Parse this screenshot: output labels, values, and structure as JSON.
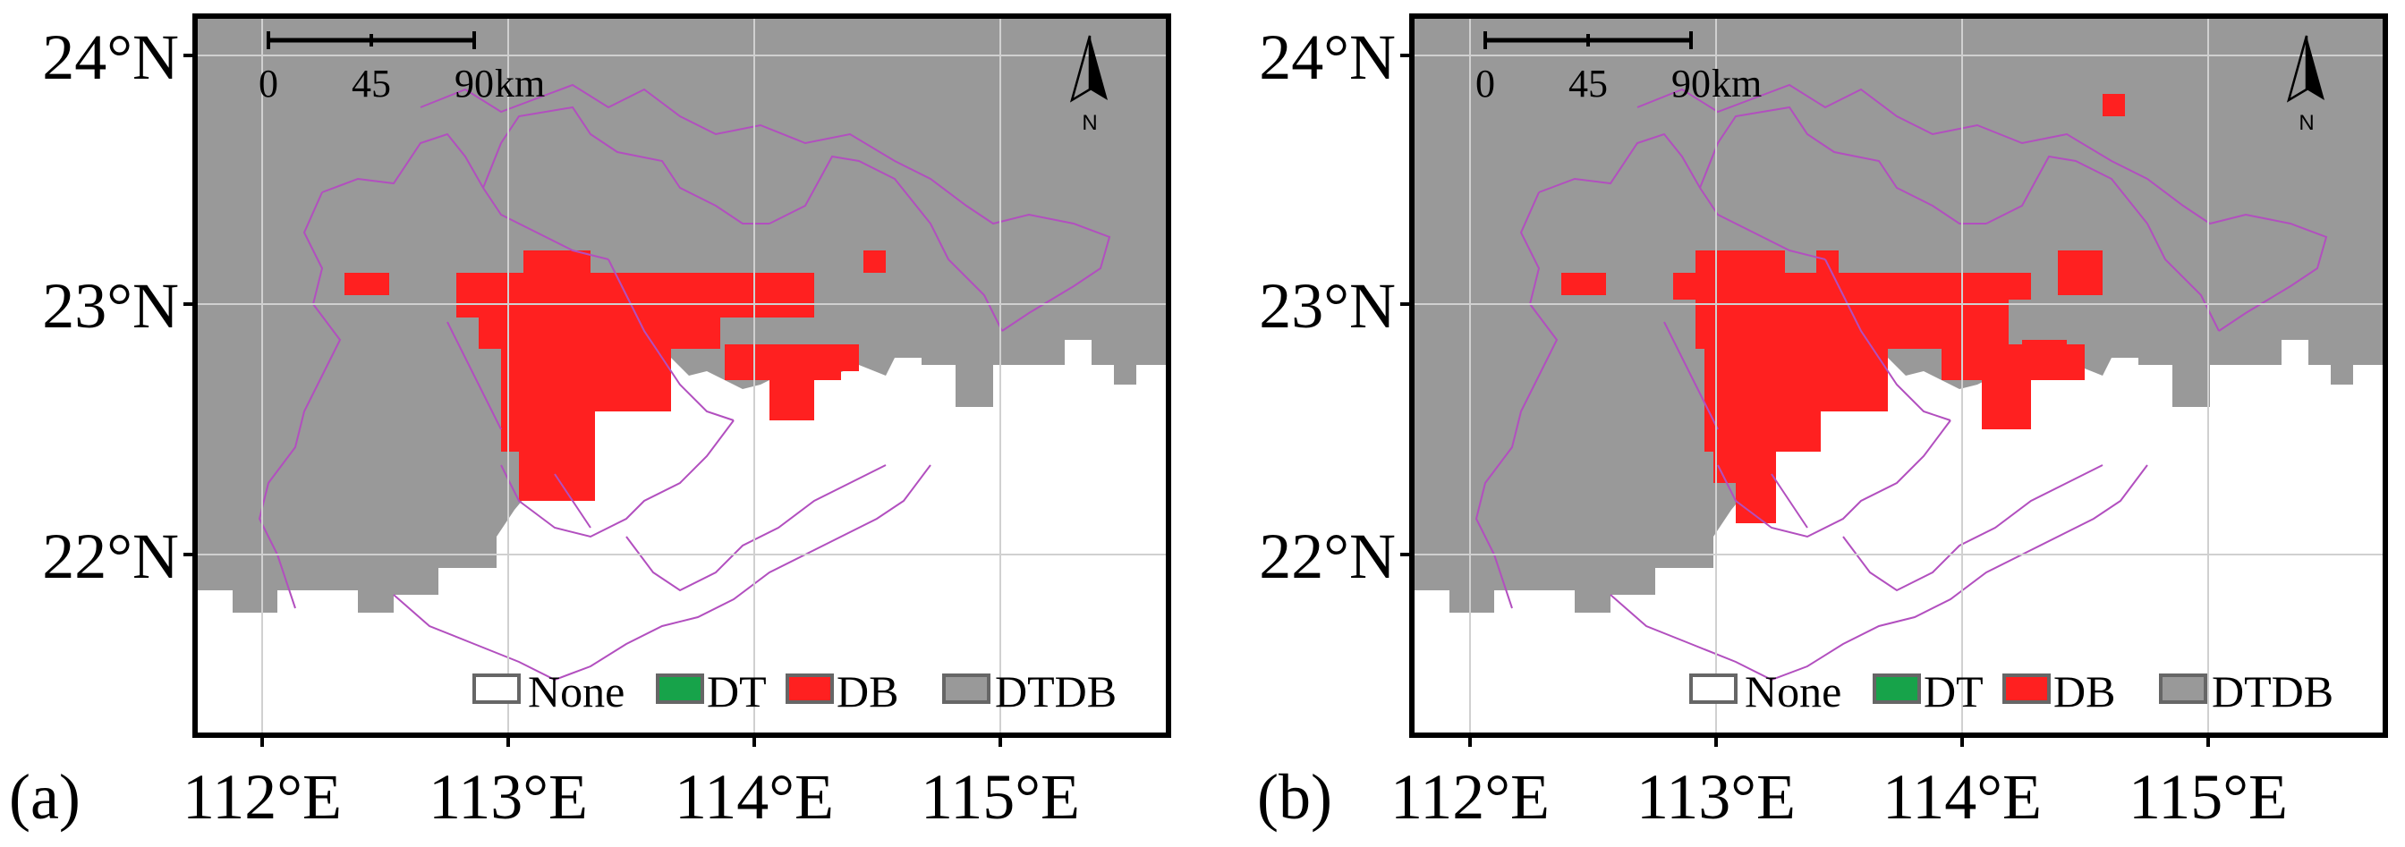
{
  "axes": {
    "y_ticks": [
      "24°N",
      "23°N",
      "22°N"
    ],
    "x_ticks": [
      "112°E",
      "113°E",
      "114°E",
      "115°E"
    ]
  },
  "panels": [
    {
      "label": "(a)"
    },
    {
      "label": "(b)"
    }
  ],
  "scale_bar": {
    "labels": [
      "0",
      "45",
      "90"
    ],
    "unit": "km"
  },
  "north_arrow": {
    "label": "N",
    "icon": "north-arrow-icon"
  },
  "legend": [
    {
      "label": "None",
      "color": "#ffffff"
    },
    {
      "label": "DT",
      "color": "#17a34a"
    },
    {
      "label": "DB",
      "color": "#ff2020"
    },
    {
      "label": "DTDB",
      "color": "#999999"
    }
  ],
  "colors": {
    "boundary": "#b24fbf",
    "frame": "#000000",
    "grid": "#d0d0d0"
  }
}
